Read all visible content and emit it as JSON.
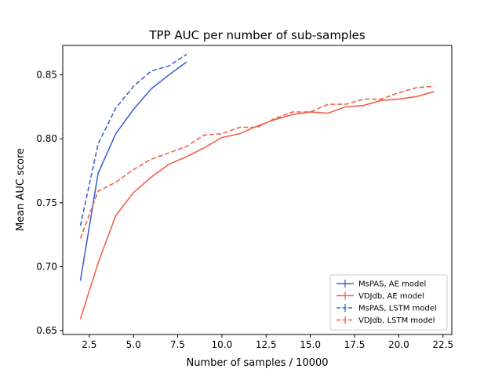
{
  "chart_data": {
    "type": "line",
    "title": "TPP AUC per number of sub-samples",
    "xlabel": "Number of samples / 10000",
    "ylabel": "Mean AUC score",
    "xlim": [
      1.0,
      23.0
    ],
    "ylim": [
      0.647,
      0.873
    ],
    "xticks": [
      2.5,
      5.0,
      7.5,
      10.0,
      12.5,
      15.0,
      17.5,
      20.0,
      22.5
    ],
    "xtick_labels": [
      "2.5",
      "5.0",
      "7.5",
      "10.0",
      "12.5",
      "15.0",
      "17.5",
      "20.0",
      "22.5"
    ],
    "yticks": [
      0.65,
      0.7,
      0.75,
      0.8,
      0.85
    ],
    "ytick_labels": [
      "0.65",
      "0.70",
      "0.75",
      "0.80",
      "0.85"
    ],
    "grid": false,
    "legend_position": "lower-right",
    "series": [
      {
        "name": "MsPAS, AE model",
        "color": "#3f63d4",
        "dash": "solid",
        "x": [
          2,
          3,
          4,
          5,
          6,
          7,
          8
        ],
        "y": [
          0.689,
          0.773,
          0.804,
          0.823,
          0.839,
          0.85,
          0.86
        ]
      },
      {
        "name": "VDJdb, AE model",
        "color": "#f0624d",
        "dash": "solid",
        "x": [
          2,
          3,
          4,
          5,
          6,
          7,
          8,
          9,
          10,
          11,
          12,
          13,
          14,
          15,
          16,
          17,
          18,
          19,
          20,
          21,
          22
        ],
        "y": [
          0.659,
          0.703,
          0.74,
          0.758,
          0.77,
          0.78,
          0.786,
          0.793,
          0.801,
          0.804,
          0.81,
          0.815,
          0.819,
          0.821,
          0.82,
          0.825,
          0.826,
          0.83,
          0.831,
          0.833,
          0.837
        ]
      },
      {
        "name": "MsPAS, LSTM model",
        "color": "#3f63d4",
        "dash": "dashed",
        "x": [
          2,
          3,
          4,
          5,
          6,
          7,
          8
        ],
        "y": [
          0.732,
          0.796,
          0.824,
          0.841,
          0.853,
          0.857,
          0.866
        ]
      },
      {
        "name": "VDJdb, LSTM model",
        "color": "#f0624d",
        "dash": "dashed",
        "x": [
          2,
          3,
          4,
          5,
          6,
          7,
          8,
          9,
          10,
          11,
          12,
          13,
          14,
          15,
          16,
          17,
          18,
          19,
          20,
          21,
          22
        ],
        "y": [
          0.722,
          0.759,
          0.766,
          0.776,
          0.784,
          0.789,
          0.794,
          0.803,
          0.804,
          0.809,
          0.809,
          0.816,
          0.821,
          0.821,
          0.827,
          0.827,
          0.831,
          0.831,
          0.836,
          0.84,
          0.841
        ]
      }
    ]
  }
}
